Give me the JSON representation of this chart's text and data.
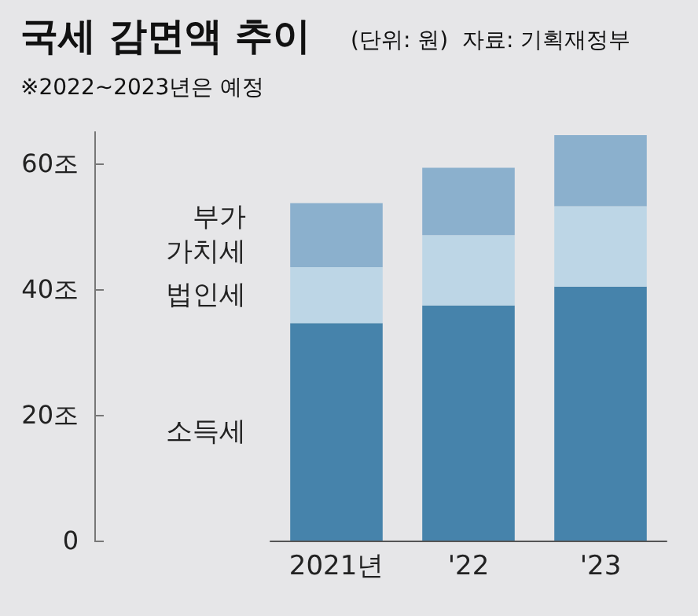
{
  "chart_data": {
    "type": "bar",
    "title": "국세 감면액 추이",
    "subtitle": "(단위: 원)  자료: 기획재정부",
    "annotations": [
      "※2022~2023년은 예정"
    ],
    "categories": [
      "2021년",
      "'22",
      "'23"
    ],
    "stacked": true,
    "series": [
      {
        "name": "소득세",
        "color": "#4683ab",
        "values": [
          34.6,
          37.4,
          40.4
        ]
      },
      {
        "name": "법인세",
        "color": "#bdd6e6",
        "values": [
          8.9,
          11.2,
          12.8
        ]
      },
      {
        "name": "부가\n가치세",
        "color": "#8bb0cd",
        "values": [
          10.2,
          10.7,
          11.3
        ]
      }
    ],
    "ylim": [
      0,
      65
    ],
    "yticks": [
      0,
      {
        "value": 20,
        "label": "20조"
      },
      {
        "value": 40,
        "label": "40조"
      },
      {
        "value": 60,
        "label": "60조"
      }
    ],
    "grid": false,
    "legend": false
  }
}
